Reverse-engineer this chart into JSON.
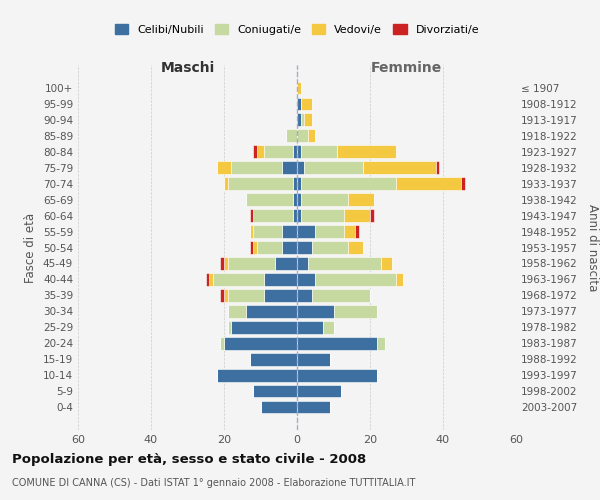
{
  "age_groups": [
    "0-4",
    "5-9",
    "10-14",
    "15-19",
    "20-24",
    "25-29",
    "30-34",
    "35-39",
    "40-44",
    "45-49",
    "50-54",
    "55-59",
    "60-64",
    "65-69",
    "70-74",
    "75-79",
    "80-84",
    "85-89",
    "90-94",
    "95-99",
    "100+"
  ],
  "birth_years": [
    "2003-2007",
    "1998-2002",
    "1993-1997",
    "1988-1992",
    "1983-1987",
    "1978-1982",
    "1973-1977",
    "1968-1972",
    "1963-1967",
    "1958-1962",
    "1953-1957",
    "1948-1952",
    "1943-1947",
    "1938-1942",
    "1933-1937",
    "1928-1932",
    "1923-1927",
    "1918-1922",
    "1913-1917",
    "1908-1912",
    "≤ 1907"
  ],
  "male_celibi": [
    10,
    12,
    22,
    13,
    20,
    18,
    14,
    9,
    9,
    6,
    4,
    4,
    1,
    1,
    1,
    4,
    1,
    0,
    0,
    0,
    0
  ],
  "male_coniugati": [
    0,
    0,
    0,
    0,
    1,
    1,
    5,
    10,
    14,
    13,
    7,
    8,
    11,
    13,
    18,
    14,
    8,
    3,
    0,
    0,
    0
  ],
  "male_vedovi": [
    0,
    0,
    0,
    0,
    0,
    0,
    0,
    1,
    1,
    1,
    1,
    1,
    0,
    0,
    1,
    4,
    2,
    0,
    0,
    0,
    0
  ],
  "male_divorziati": [
    0,
    0,
    0,
    0,
    0,
    0,
    0,
    1,
    1,
    1,
    1,
    0,
    1,
    0,
    0,
    0,
    1,
    0,
    0,
    0,
    0
  ],
  "female_celibi": [
    9,
    12,
    22,
    9,
    22,
    7,
    10,
    4,
    5,
    3,
    4,
    5,
    1,
    1,
    1,
    2,
    1,
    0,
    1,
    1,
    0
  ],
  "female_coniugati": [
    0,
    0,
    0,
    0,
    2,
    3,
    12,
    16,
    22,
    20,
    10,
    8,
    12,
    13,
    26,
    16,
    10,
    3,
    1,
    0,
    0
  ],
  "female_vedovi": [
    0,
    0,
    0,
    0,
    0,
    0,
    0,
    0,
    2,
    3,
    4,
    3,
    7,
    7,
    18,
    20,
    16,
    2,
    2,
    3,
    1
  ],
  "female_divorziati": [
    0,
    0,
    0,
    0,
    0,
    0,
    0,
    0,
    0,
    0,
    0,
    1,
    1,
    0,
    1,
    1,
    0,
    0,
    0,
    0,
    0
  ],
  "color_celibi": "#3d6fa0",
  "color_coniugati": "#c5d9a0",
  "color_vedovi": "#f5c842",
  "color_divorziati": "#cc2222",
  "title": "Popolazione per età, sesso e stato civile - 2008",
  "subtitle": "COMUNE DI CANNA (CS) - Dati ISTAT 1° gennaio 2008 - Elaborazione TUTTITALIA.IT",
  "xlabel_left": "Maschi",
  "xlabel_right": "Femmine",
  "ylabel_left": "Fasce di età",
  "ylabel_right": "Anni di nascita",
  "xlim": 60,
  "legend_labels": [
    "Celibi/Nubili",
    "Coniugati/e",
    "Vedovi/e",
    "Divorziati/e"
  ],
  "bg_color": "#f4f4f4"
}
